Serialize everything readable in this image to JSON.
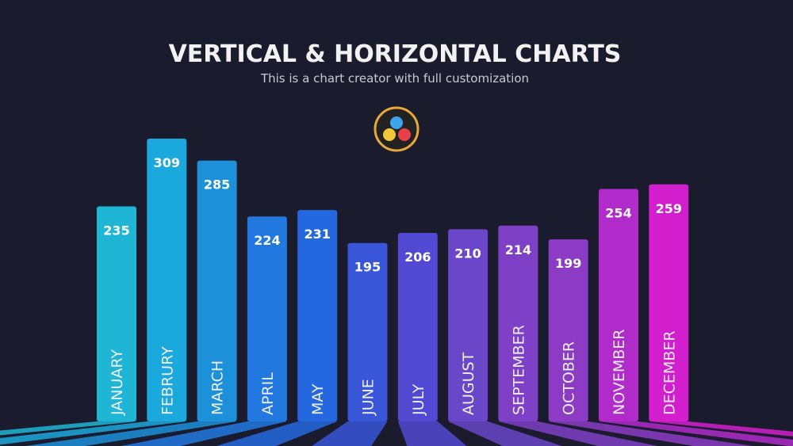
{
  "chart_data": {
    "type": "bar",
    "title": "VERTICAL & HORIZONTAL CHARTS",
    "subtitle": "This is a chart creator with full customization",
    "categories": [
      "JANUARY",
      "FEBRURY",
      "MARCH",
      "APRIL",
      "MAY",
      "JUNE",
      "JULY",
      "AUGUST",
      "SEPTEMBER",
      "OCTOBER",
      "NOVEMBER",
      "DECEMBER"
    ],
    "values": [
      235,
      309,
      285,
      224,
      231,
      195,
      206,
      210,
      214,
      199,
      254,
      259
    ],
    "colors": [
      "#1fb6d6",
      "#1ba8dc",
      "#1c91d9",
      "#2179e0",
      "#2468df",
      "#3a56d8",
      "#5249d2",
      "#6a46c8",
      "#7e40c6",
      "#8c3bc4",
      "#b02bca",
      "#d21ecc"
    ]
  }
}
